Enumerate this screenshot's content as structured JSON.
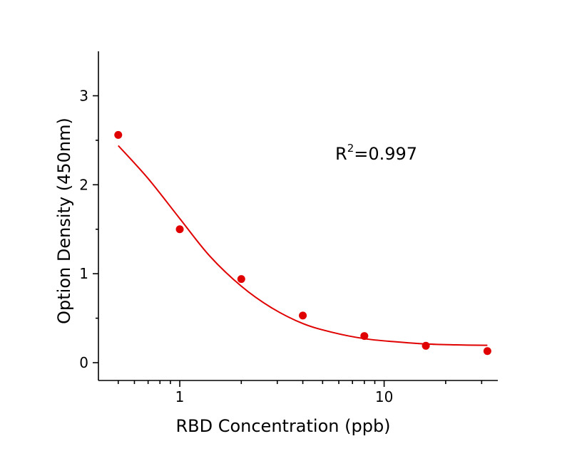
{
  "chart_data": {
    "type": "scatter",
    "title": "",
    "xlabel": "RBD  Concentration  (ppb)",
    "ylabel": "Option Density  (450nm)",
    "x_scale": "log",
    "xlim": [
      0.4,
      36
    ],
    "ylim": [
      -0.2,
      3.5
    ],
    "x_ticks": [
      1,
      10
    ],
    "x_tick_labels": [
      "1",
      "10"
    ],
    "y_ticks": [
      0,
      1,
      2,
      3
    ],
    "y_tick_labels": [
      "0",
      "1",
      "2",
      "3"
    ],
    "grid": false,
    "legend": "none",
    "colors": {
      "points": "#e00000",
      "fit": "#e00000"
    },
    "points": {
      "x": [
        0.5,
        1,
        2,
        4,
        8,
        16,
        32
      ],
      "y": [
        2.56,
        1.5,
        0.94,
        0.53,
        0.3,
        0.19,
        0.13
      ]
    },
    "fit_curve": {
      "x": [
        0.5,
        0.7,
        1,
        1.4,
        2,
        2.8,
        4,
        5.6,
        8,
        11.3,
        16,
        22.6,
        32
      ],
      "y": [
        2.44,
        2.07,
        1.62,
        1.2,
        0.86,
        0.62,
        0.44,
        0.34,
        0.27,
        0.235,
        0.21,
        0.2,
        0.195
      ]
    },
    "annotation": {
      "label": "R",
      "superscript": "2",
      "value": "=0.997"
    }
  }
}
